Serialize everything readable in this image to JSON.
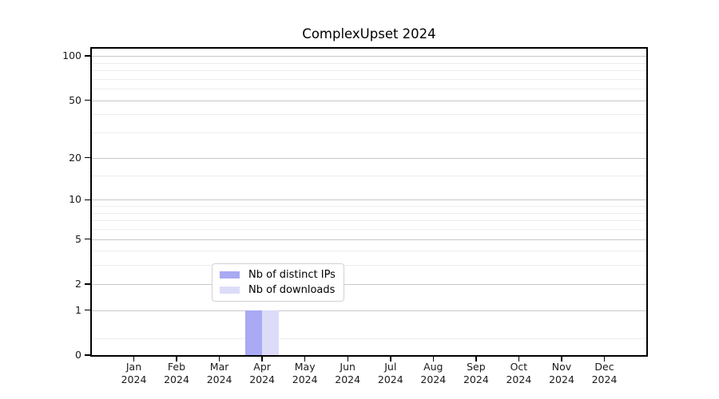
{
  "title": "ComplexUpset 2024",
  "chart_data": {
    "type": "bar",
    "title": "ComplexUpset 2024",
    "categories": [
      "Jan 2024",
      "Feb 2024",
      "Mar 2024",
      "Apr 2024",
      "May 2024",
      "Jun 2024",
      "Jul 2024",
      "Aug 2024",
      "Sep 2024",
      "Oct 2024",
      "Nov 2024",
      "Dec 2024"
    ],
    "x_tick_line1": [
      "Jan",
      "Feb",
      "Mar",
      "Apr",
      "May",
      "Jun",
      "Jul",
      "Aug",
      "Sep",
      "Oct",
      "Nov",
      "Dec"
    ],
    "x_tick_line2": "2024",
    "series": [
      {
        "name": "Nb of distinct IPs",
        "color": "#a9a9f4",
        "values": [
          0,
          0,
          0,
          1,
          0,
          0,
          0,
          0,
          0,
          0,
          0,
          0
        ]
      },
      {
        "name": "Nb of downloads",
        "color": "#dcdcf9",
        "values": [
          0,
          0,
          0,
          1,
          0,
          0,
          0,
          0,
          0,
          0,
          0,
          0
        ]
      }
    ],
    "xlabel": "",
    "ylabel": "",
    "yaxis": {
      "scale": "log1p",
      "major_ticks": [
        0,
        1,
        2,
        5,
        10,
        20,
        50,
        100
      ],
      "minor_ticks": [
        0.3,
        3,
        4,
        6,
        7,
        8,
        9,
        15,
        30,
        40,
        60,
        70,
        80,
        90
      ],
      "ylim": [
        0,
        112
      ]
    },
    "grid": true,
    "legend": {
      "location": "lower center",
      "entries": [
        "Nb of distinct IPs",
        "Nb of downloads"
      ]
    },
    "colors": {
      "grid_major": "#c8c8c8",
      "grid_minor": "#ededed",
      "spine": "#000000",
      "background": "#ffffff",
      "bar_distinct_ips": "#a9a9f4",
      "bar_downloads": "#dcdcf9"
    }
  }
}
